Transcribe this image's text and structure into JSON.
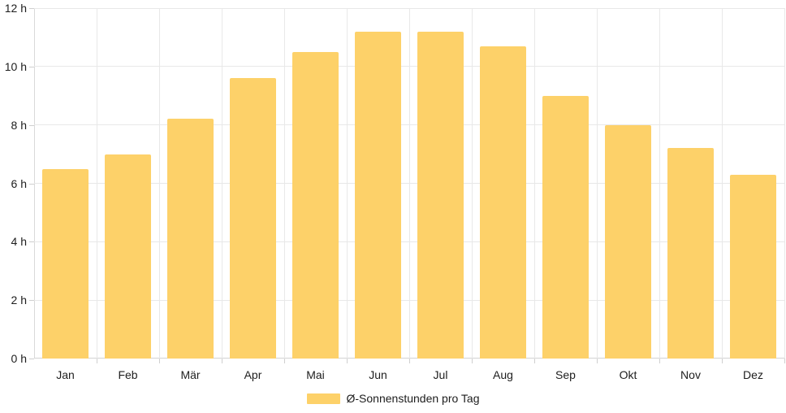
{
  "chart_data": {
    "type": "bar",
    "title": "",
    "categories": [
      "Jan",
      "Feb",
      "Mär",
      "Apr",
      "Mai",
      "Jun",
      "Jul",
      "Aug",
      "Sep",
      "Okt",
      "Nov",
      "Dez"
    ],
    "values": [
      6.5,
      7.0,
      8.2,
      9.6,
      10.5,
      11.2,
      11.2,
      10.7,
      9.0,
      8.0,
      7.2,
      6.3
    ],
    "series_name": "Ø-Sonnenstunden pro Tag",
    "xlabel": "",
    "ylabel": "",
    "ylim": [
      0,
      12
    ],
    "y_tick_step": 2,
    "y_tick_labels": [
      "0 h",
      "2 h",
      "4 h",
      "6 h",
      "8 h",
      "10 h",
      "12 h"
    ],
    "grid": true,
    "legend_position": "bottom-center",
    "colors": {
      "bar": "#FDD169",
      "grid": "#E8E8E8",
      "axis": "#D2D2D2",
      "tick": "#CFCFCF",
      "text": "#1D1D1D",
      "background": "#FFFFFF"
    }
  },
  "legend": {
    "label": "Ø-Sonnenstunden pro Tag"
  }
}
